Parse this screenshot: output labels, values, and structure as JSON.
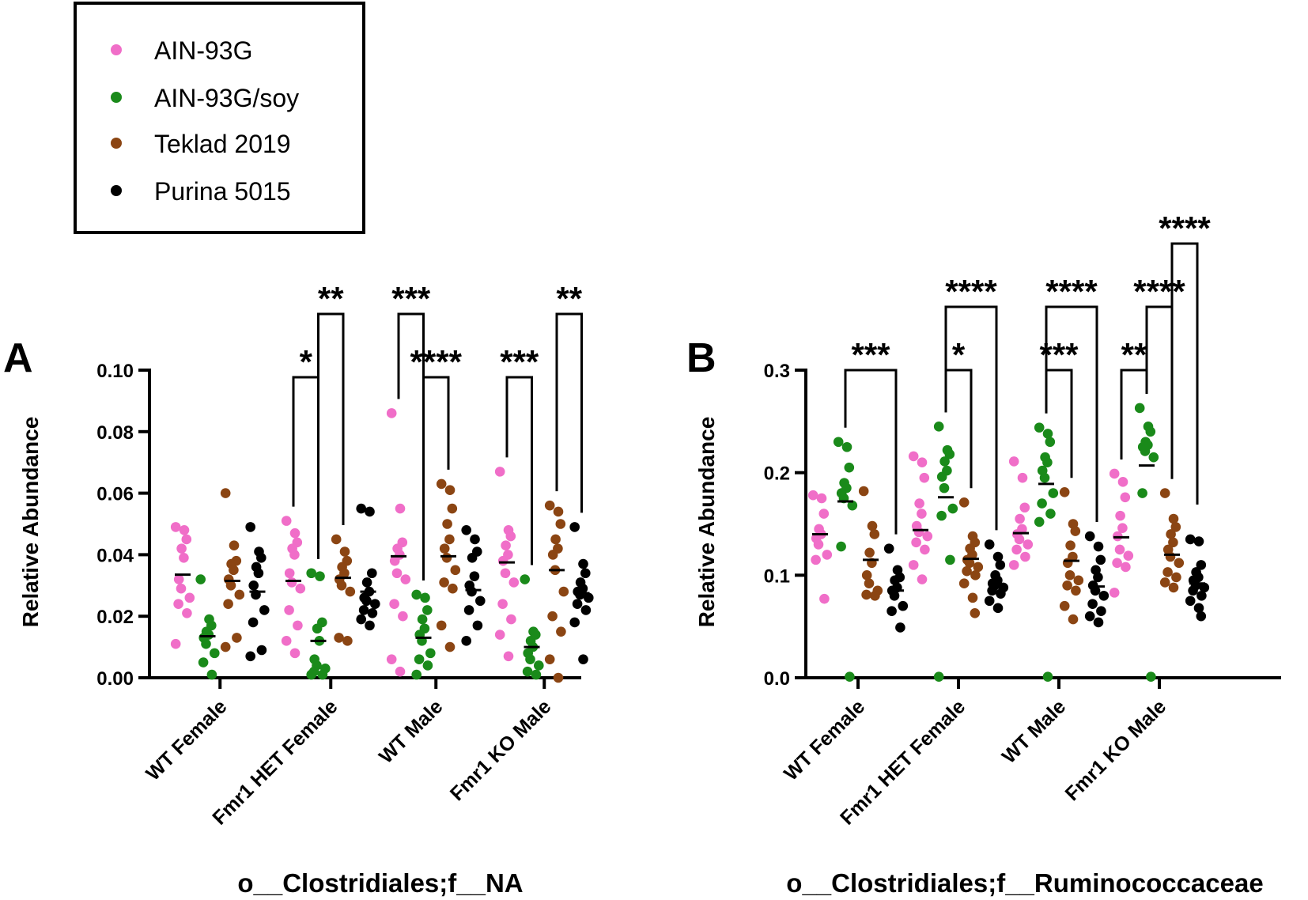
{
  "legend": [
    {
      "label": "AIN-93G",
      "color": "#f06ec8"
    },
    {
      "label": "AIN-93G/soy",
      "color": "#1a8a1a"
    },
    {
      "label": "Teklad 2019",
      "color": "#8b4513"
    },
    {
      "label": "Purina 5015",
      "color": "#000000"
    }
  ],
  "chart_data": [
    {
      "type": "scatter",
      "panel": "A",
      "title": "o__Clostridiales;f__NA",
      "ylabel": "Relative Abundance",
      "ylim": [
        0,
        0.1
      ],
      "yticks": [
        "0.00",
        "0.02",
        "0.04",
        "0.06",
        "0.08",
        "0.10"
      ],
      "categories": [
        "WT Female",
        "Fmr1 HET Female",
        "WT Male",
        "Fmr1 KO Male"
      ],
      "series": [
        {
          "name": "AIN-93G",
          "medians": [
            0.0335,
            0.0315,
            0.0395,
            0.0375
          ],
          "points": [
            [
              0.049,
              0.048,
              0.045,
              0.042,
              0.039,
              0.032,
              0.029,
              0.026,
              0.024,
              0.021,
              0.011
            ],
            [
              0.051,
              0.047,
              0.044,
              0.042,
              0.04,
              0.034,
              0.031,
              0.029,
              0.022,
              0.017,
              0.012,
              0.008
            ],
            [
              0.086,
              0.055,
              0.044,
              0.042,
              0.04,
              0.038,
              0.034,
              0.032,
              0.024,
              0.02,
              0.006,
              0.002
            ],
            [
              0.067,
              0.048,
              0.046,
              0.043,
              0.04,
              0.038,
              0.034,
              0.031,
              0.024,
              0.019,
              0.014,
              0.007
            ]
          ]
        },
        {
          "name": "AIN-93G/soy",
          "medians": [
            0.0135,
            0.012,
            0.013,
            0.01
          ],
          "points": [
            [
              0.032,
              0.019,
              0.017,
              0.015,
              0.014,
              0.013,
              0.011,
              0.008,
              0.005,
              0.001
            ],
            [
              0.034,
              0.033,
              0.018,
              0.016,
              0.012,
              0.006,
              0.004,
              0.003,
              0.002,
              0.001,
              0.001
            ],
            [
              0.027,
              0.026,
              0.022,
              0.019,
              0.016,
              0.014,
              0.012,
              0.008,
              0.006,
              0.004,
              0.001
            ],
            [
              0.032,
              0.015,
              0.014,
              0.012,
              0.01,
              0.008,
              0.006,
              0.004,
              0.002,
              0.001
            ]
          ]
        },
        {
          "name": "Teklad 2019",
          "medians": [
            0.0315,
            0.0325,
            0.0395,
            0.035
          ],
          "points": [
            [
              0.06,
              0.043,
              0.038,
              0.037,
              0.035,
              0.032,
              0.03,
              0.027,
              0.024,
              0.013,
              0.01
            ],
            [
              0.045,
              0.041,
              0.038,
              0.036,
              0.034,
              0.032,
              0.03,
              0.028,
              0.013,
              0.012
            ],
            [
              0.063,
              0.061,
              0.055,
              0.05,
              0.045,
              0.042,
              0.039,
              0.035,
              0.031,
              0.029,
              0.017,
              0.01
            ],
            [
              0.056,
              0.054,
              0.05,
              0.045,
              0.042,
              0.04,
              0.035,
              0.028,
              0.02,
              0.015,
              0.006,
              0.0
            ]
          ]
        },
        {
          "name": "Purina 5015",
          "medians": [
            0.028,
            0.028,
            0.0285,
            0.0275
          ],
          "points": [
            [
              0.049,
              0.041,
              0.039,
              0.036,
              0.034,
              0.03,
              0.027,
              0.022,
              0.018,
              0.009,
              0.007
            ],
            [
              0.055,
              0.054,
              0.034,
              0.031,
              0.028,
              0.026,
              0.025,
              0.024,
              0.022,
              0.021,
              0.019,
              0.017
            ],
            [
              0.048,
              0.045,
              0.041,
              0.039,
              0.033,
              0.03,
              0.028,
              0.025,
              0.022,
              0.017,
              0.012
            ],
            [
              0.049,
              0.037,
              0.034,
              0.031,
              0.029,
              0.028,
              0.027,
              0.026,
              0.024,
              0.022,
              0.018,
              0.006
            ]
          ]
        }
      ],
      "comparisons": [
        {
          "category": 1,
          "from": 0,
          "to": 1,
          "level": 0,
          "label": "*"
        },
        {
          "category": 1,
          "from": 1,
          "to": 2,
          "level": 1,
          "label": "**"
        },
        {
          "category": 2,
          "from": 0,
          "to": 1,
          "level": 1,
          "label": "***"
        },
        {
          "category": 2,
          "from": 1,
          "to": 2,
          "level": 0,
          "label": "****"
        },
        {
          "category": 3,
          "from": 0,
          "to": 1,
          "level": 0,
          "label": "***"
        },
        {
          "category": 3,
          "from": 2,
          "to": 3,
          "level": 1,
          "label": "**"
        }
      ]
    },
    {
      "type": "scatter",
      "panel": "B",
      "title": "o__Clostridiales;f__Ruminococcaceae",
      "ylabel": "Relative Abundance",
      "ylim": [
        0,
        0.3
      ],
      "yticks": [
        "0.0",
        "0.1",
        "0.2",
        "0.3"
      ],
      "categories": [
        "WT Female",
        "Fmr1 HET Female",
        "WT Male",
        "Fmr1 KO Male"
      ],
      "series": [
        {
          "name": "AIN-93G",
          "medians": [
            0.14,
            0.144,
            0.141,
            0.137
          ],
          "points": [
            [
              0.178,
              0.175,
              0.16,
              0.145,
              0.14,
              0.136,
              0.13,
              0.12,
              0.115,
              0.077
            ],
            [
              0.216,
              0.21,
              0.195,
              0.17,
              0.16,
              0.148,
              0.142,
              0.138,
              0.132,
              0.125,
              0.11,
              0.096
            ],
            [
              0.211,
              0.195,
              0.166,
              0.155,
              0.145,
              0.14,
              0.135,
              0.13,
              0.125,
              0.118,
              0.11
            ],
            [
              0.199,
              0.191,
              0.176,
              0.158,
              0.146,
              0.138,
              0.125,
              0.119,
              0.112,
              0.108,
              0.083
            ]
          ]
        },
        {
          "name": "AIN-93G/soy",
          "medians": [
            0.172,
            0.176,
            0.189,
            0.207
          ],
          "points": [
            [
              0.23,
              0.225,
              0.205,
              0.19,
              0.185,
              0.18,
              0.175,
              0.168,
              0.128,
              0.001
            ],
            [
              0.245,
              0.222,
              0.218,
              0.211,
              0.202,
              0.196,
              0.185,
              0.165,
              0.158,
              0.115,
              0.001
            ],
            [
              0.244,
              0.238,
              0.23,
              0.215,
              0.21,
              0.202,
              0.195,
              0.18,
              0.17,
              0.16,
              0.152,
              0.001
            ],
            [
              0.263,
              0.245,
              0.24,
              0.23,
              0.227,
              0.225,
              0.221,
              0.215,
              0.18,
              0.001
            ]
          ]
        },
        {
          "name": "Teklad 2019",
          "medians": [
            0.115,
            0.116,
            0.114,
            0.12
          ],
          "points": [
            [
              0.182,
              0.148,
              0.14,
              0.122,
              0.112,
              0.1,
              0.092,
              0.085,
              0.081,
              0.08
            ],
            [
              0.171,
              0.138,
              0.132,
              0.126,
              0.12,
              0.115,
              0.112,
              0.108,
              0.104,
              0.1,
              0.092,
              0.078,
              0.063
            ],
            [
              0.181,
              0.15,
              0.143,
              0.129,
              0.118,
              0.112,
              0.1,
              0.095,
              0.09,
              0.085,
              0.07,
              0.057
            ],
            [
              0.18,
              0.155,
              0.147,
              0.14,
              0.132,
              0.125,
              0.118,
              0.112,
              0.103,
              0.098,
              0.093,
              0.088
            ]
          ]
        },
        {
          "name": "Purina 5015",
          "medians": [
            0.085,
            0.09,
            0.089,
            0.092
          ],
          "points": [
            [
              0.126,
              0.105,
              0.098,
              0.095,
              0.088,
              0.085,
              0.08,
              0.07,
              0.065,
              0.049
            ],
            [
              0.13,
              0.118,
              0.11,
              0.1,
              0.095,
              0.092,
              0.09,
              0.088,
              0.085,
              0.082,
              0.075,
              0.068
            ],
            [
              0.138,
              0.128,
              0.115,
              0.105,
              0.098,
              0.09,
              0.085,
              0.08,
              0.072,
              0.065,
              0.06,
              0.054
            ],
            [
              0.135,
              0.133,
              0.11,
              0.103,
              0.098,
              0.095,
              0.09,
              0.088,
              0.085,
              0.08,
              0.075,
              0.068,
              0.06
            ]
          ]
        }
      ],
      "comparisons": [
        {
          "category": 0,
          "from": 1,
          "to": 3,
          "level": 0,
          "label": "***"
        },
        {
          "category": 1,
          "from": 1,
          "to": 2,
          "level": 0,
          "label": "*"
        },
        {
          "category": 1,
          "from": 1,
          "to": 3,
          "level": 1,
          "label": "****"
        },
        {
          "category": 2,
          "from": 1,
          "to": 2,
          "level": 0,
          "label": "***"
        },
        {
          "category": 2,
          "from": 1,
          "to": 3,
          "level": 1,
          "label": "****"
        },
        {
          "category": 3,
          "from": 0,
          "to": 1,
          "level": 0,
          "label": "**"
        },
        {
          "category": 3,
          "from": 1,
          "to": 2,
          "level": 1,
          "label": "****"
        },
        {
          "category": 3,
          "from": 2,
          "to": 3,
          "level": 2,
          "label": "****"
        }
      ]
    }
  ]
}
